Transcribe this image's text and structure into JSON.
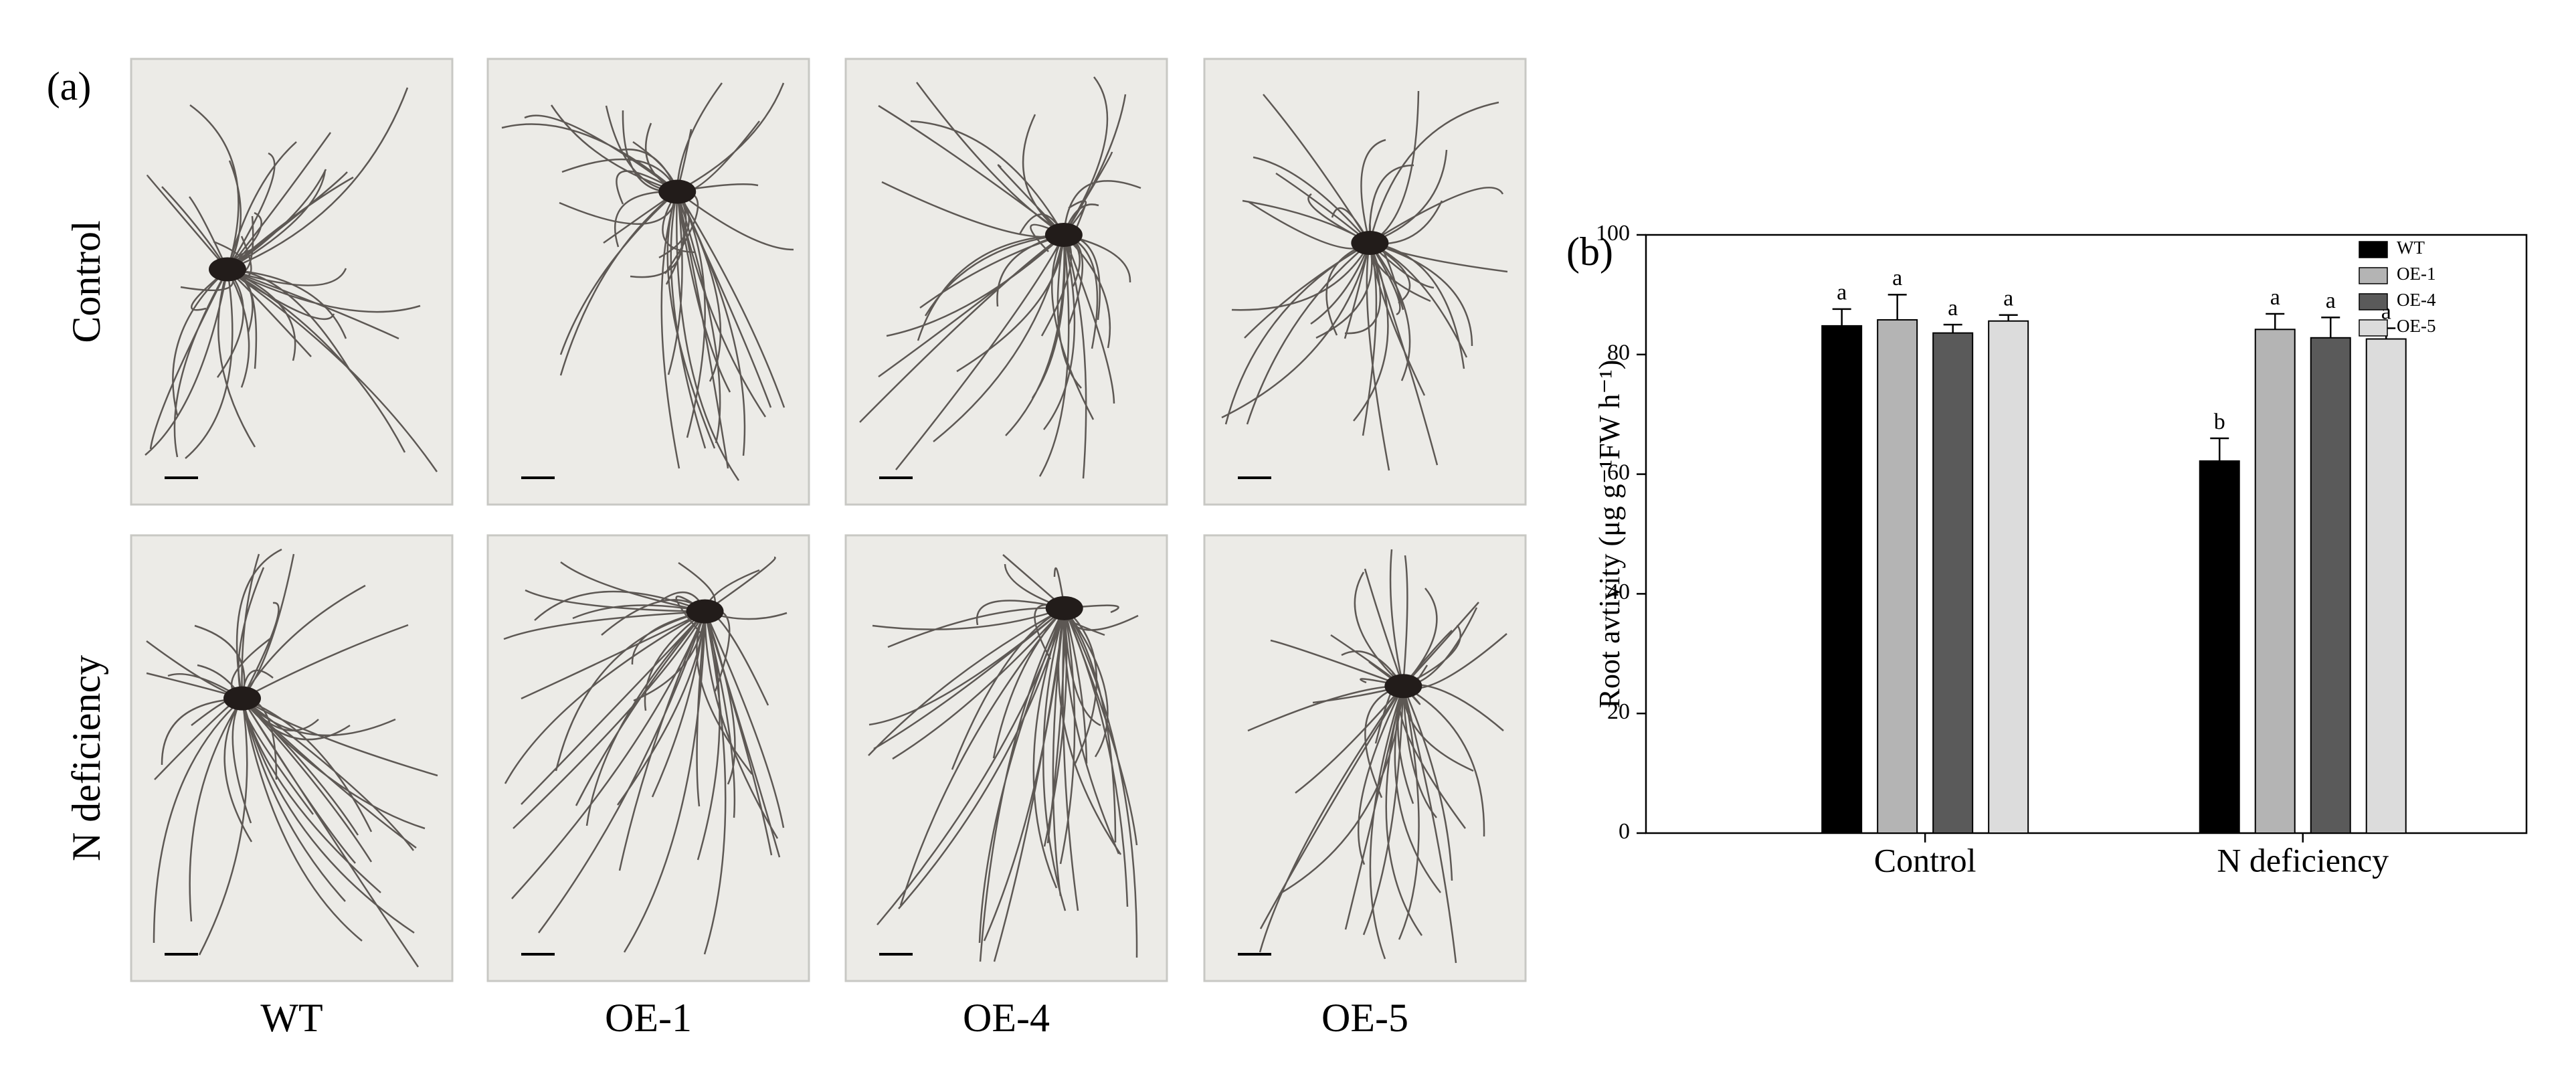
{
  "panel_a": {
    "label": "(a)",
    "row_labels": [
      "Control",
      "N deficiency"
    ],
    "column_labels": [
      "WT",
      "OE-1",
      "OE-4",
      "OE-5"
    ]
  },
  "chart_data": {
    "type": "bar",
    "panel_label": "(b)",
    "y_label": "Root avtivity (μg g⁻¹FW h⁻¹)",
    "categories": [
      "Control",
      "N deficiency"
    ],
    "series": [
      {
        "name": "WT",
        "color": "#000000",
        "values": [
          84.8,
          62.2
        ],
        "errors": [
          2.8,
          3.8
        ],
        "letters": [
          "a",
          "b"
        ]
      },
      {
        "name": "OE-1",
        "color": "#b4b4b4",
        "values": [
          85.8,
          84.2
        ],
        "errors": [
          4.2,
          2.6
        ],
        "letters": [
          "a",
          "a"
        ]
      },
      {
        "name": "OE-4",
        "color": "#5a5a5a",
        "values": [
          83.6,
          82.8
        ],
        "errors": [
          1.4,
          3.4
        ],
        "letters": [
          "a",
          "a"
        ]
      },
      {
        "name": "OE-5",
        "color": "#dcdcdc",
        "values": [
          85.6,
          82.6
        ],
        "errors": [
          1.0,
          1.8
        ],
        "letters": [
          "a",
          "a"
        ]
      }
    ],
    "ylim": [
      0,
      100
    ],
    "yticks": [
      0,
      20,
      40,
      60,
      80,
      100
    ],
    "legend": "upper right"
  }
}
